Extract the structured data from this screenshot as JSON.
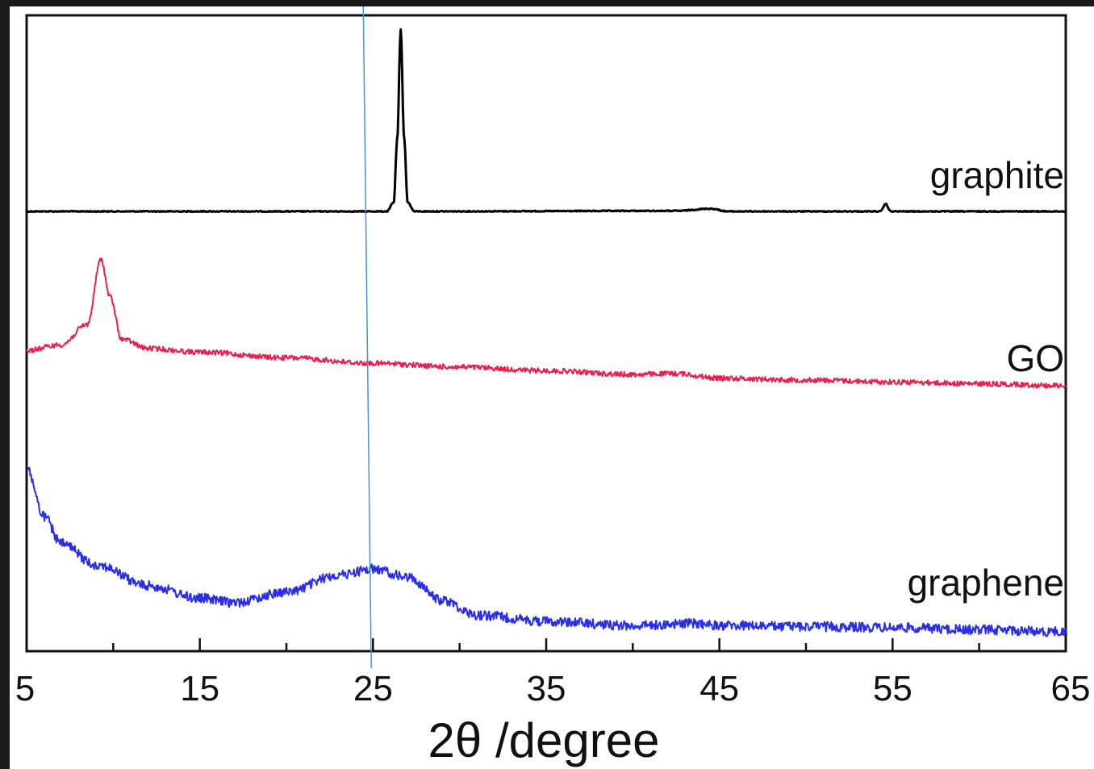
{
  "chart_data": {
    "type": "line",
    "title": "",
    "xlabel": "2θ /degree",
    "ylabel": "",
    "xlim": [
      5,
      65
    ],
    "x_ticks": [
      5,
      15,
      25,
      35,
      45,
      55,
      65
    ],
    "x_tick_labels": [
      "5",
      "15",
      "25",
      "35",
      "45",
      "55",
      "65"
    ],
    "y_ticks_shown": false,
    "grid": false,
    "legend": "none (series labeled on the right side of each trace)",
    "reference_line": {
      "x": 24.9,
      "color": "#4a90e2"
    },
    "series": [
      {
        "name": "graphite",
        "label": "graphite",
        "color": "#000000",
        "points": [
          [
            5,
            0.0
          ],
          [
            20,
            0.0
          ],
          [
            25.8,
            0.0
          ],
          [
            26.2,
            0.05
          ],
          [
            26.4,
            0.4
          ],
          [
            26.6,
            1.0
          ],
          [
            26.8,
            0.4
          ],
          [
            27.0,
            0.05
          ],
          [
            27.4,
            0.0
          ],
          [
            42.5,
            0.003
          ],
          [
            44.5,
            0.015
          ],
          [
            45.5,
            0.0
          ],
          [
            54.3,
            0.0
          ],
          [
            54.6,
            0.04
          ],
          [
            54.9,
            0.0
          ],
          [
            65,
            0.0
          ]
        ]
      },
      {
        "name": "GO",
        "label": "GO",
        "color": "#e8204b",
        "points": [
          [
            5,
            0.06
          ],
          [
            7,
            0.09
          ],
          [
            8.5,
            0.2
          ],
          [
            9.3,
            0.55
          ],
          [
            9.8,
            0.35
          ],
          [
            10.5,
            0.12
          ],
          [
            12,
            0.07
          ],
          [
            15,
            0.05
          ],
          [
            20,
            0.02
          ],
          [
            25,
            -0.01
          ],
          [
            30,
            -0.03
          ],
          [
            35,
            -0.05
          ],
          [
            40,
            -0.07
          ],
          [
            42.5,
            -0.065
          ],
          [
            45,
            -0.09
          ],
          [
            50,
            -0.1
          ],
          [
            55,
            -0.11
          ],
          [
            60,
            -0.12
          ],
          [
            65,
            -0.13
          ]
        ]
      },
      {
        "name": "graphene",
        "label": "graphene",
        "color": "#2a2ee8",
        "points": [
          [
            5,
            0.78
          ],
          [
            6,
            0.55
          ],
          [
            7,
            0.42
          ],
          [
            9,
            0.32
          ],
          [
            12,
            0.22
          ],
          [
            15,
            0.16
          ],
          [
            17,
            0.14
          ],
          [
            20,
            0.19
          ],
          [
            23,
            0.27
          ],
          [
            25,
            0.3
          ],
          [
            27,
            0.26
          ],
          [
            29,
            0.15
          ],
          [
            31,
            0.08
          ],
          [
            35,
            0.05
          ],
          [
            40,
            0.03
          ],
          [
            43.5,
            0.04
          ],
          [
            45,
            0.03
          ],
          [
            50,
            0.025
          ],
          [
            55,
            0.02
          ],
          [
            60,
            0.01
          ],
          [
            65,
            0.0
          ]
        ]
      }
    ]
  }
}
